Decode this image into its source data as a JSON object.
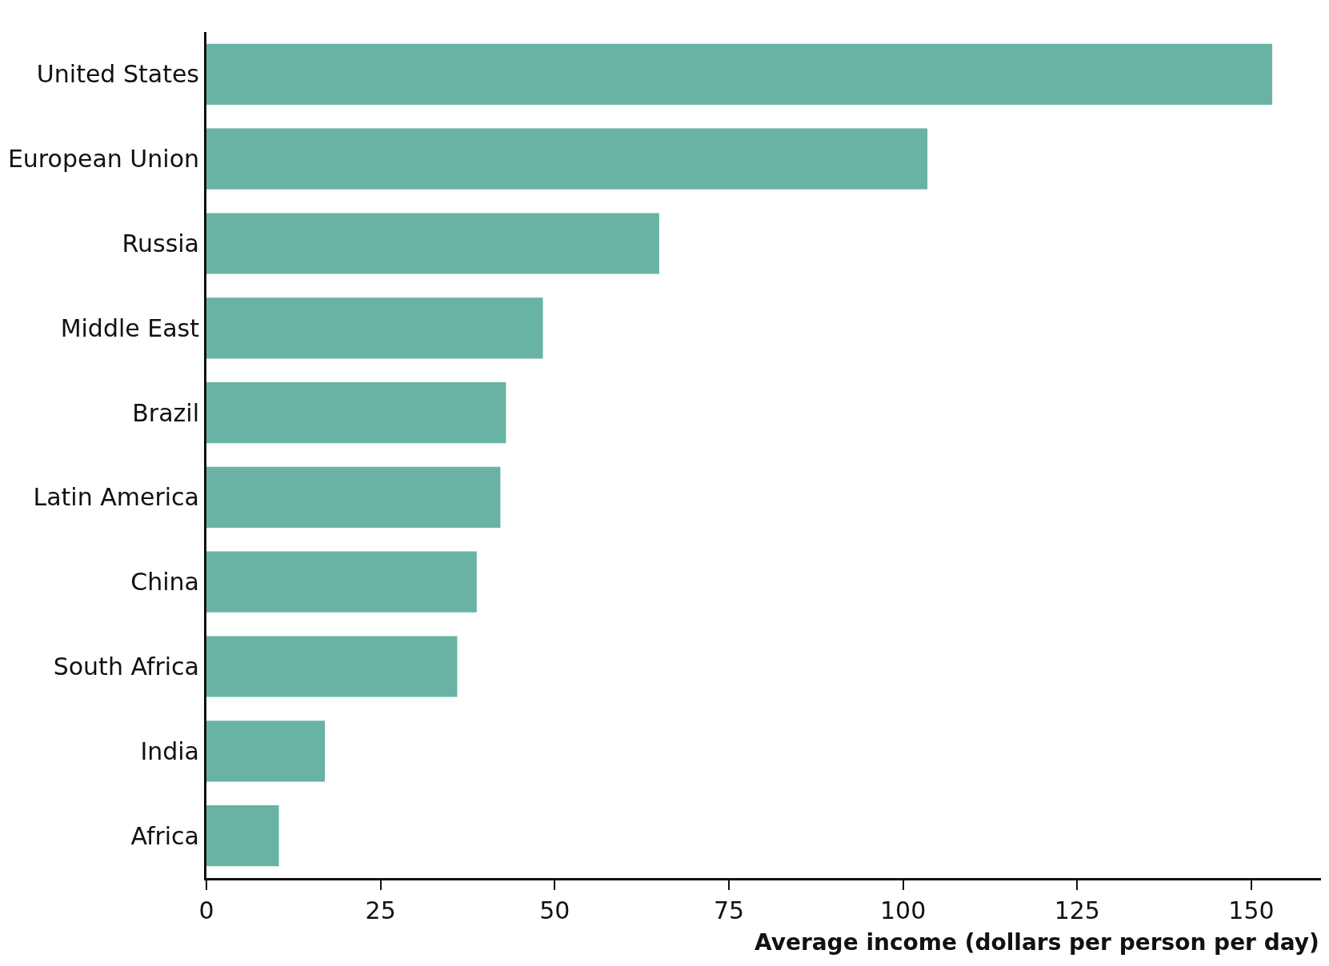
{
  "chart_data": {
    "type": "bar",
    "orientation": "horizontal",
    "xlabel": "Average income (dollars per person per day)",
    "categories": [
      "United States",
      "European Union",
      "Russia",
      "Middle East",
      "Brazil",
      "Latin America",
      "China",
      "South Africa",
      "India",
      "Africa"
    ],
    "values": [
      153,
      103.5,
      65,
      48.3,
      43,
      42.2,
      38.8,
      36,
      17,
      10.4
    ],
    "color": "#69b3a4",
    "xlim": [
      0,
      160
    ],
    "xticks": [
      0,
      25,
      50,
      75,
      100,
      125,
      150
    ],
    "legend": false
  }
}
